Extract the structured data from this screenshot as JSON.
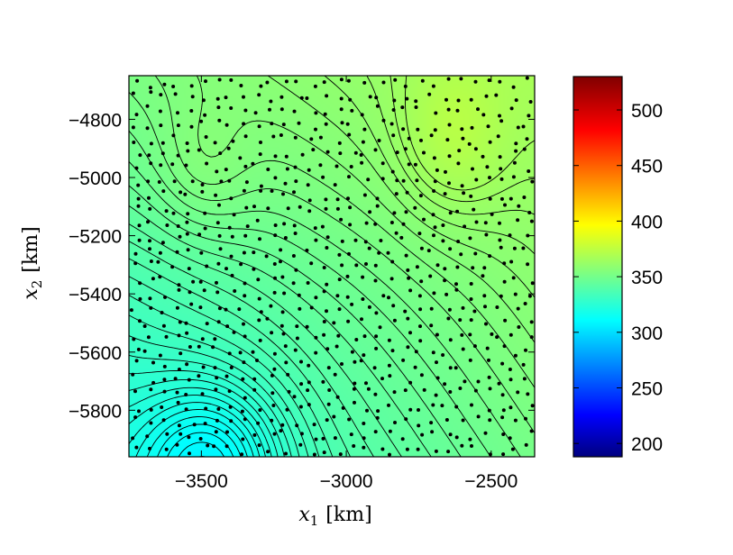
{
  "chart_data": {
    "type": "heatmap",
    "title": "",
    "xlabel": {
      "var": "x",
      "sub": "1",
      "unit": "[km]"
    },
    "ylabel": {
      "var": "x",
      "sub": "2",
      "unit": "[km]"
    },
    "xlim": [
      -3750,
      -2350
    ],
    "ylim": [
      -5960,
      -4650
    ],
    "x_ticks": [
      -3500,
      -3000,
      -2500
    ],
    "x_tick_labels": [
      "−3500",
      "−3000",
      "−2500"
    ],
    "y_ticks": [
      -5800,
      -5600,
      -5400,
      -5200,
      -5000,
      -4800
    ],
    "y_tick_labels": [
      "−5800",
      "−5600",
      "−5400",
      "−5200",
      "−5000",
      "−4800"
    ],
    "colorbar": {
      "colormap": "jet",
      "range": [
        188,
        530
      ],
      "ticks": [
        200,
        250,
        300,
        350,
        400,
        450,
        500
      ],
      "tick_labels": [
        "200",
        "250",
        "300",
        "350",
        "400",
        "450",
        "500"
      ]
    },
    "field_summary": {
      "min_value": 298,
      "max_value": 372,
      "min_location": [
        -3450,
        -5950
      ],
      "max_location": [
        -2450,
        -4760
      ],
      "contour_lines": "~40 iso-lines, step about 2"
    },
    "observation_points": "~800 scattered black dots (data sites)",
    "grid": false
  }
}
